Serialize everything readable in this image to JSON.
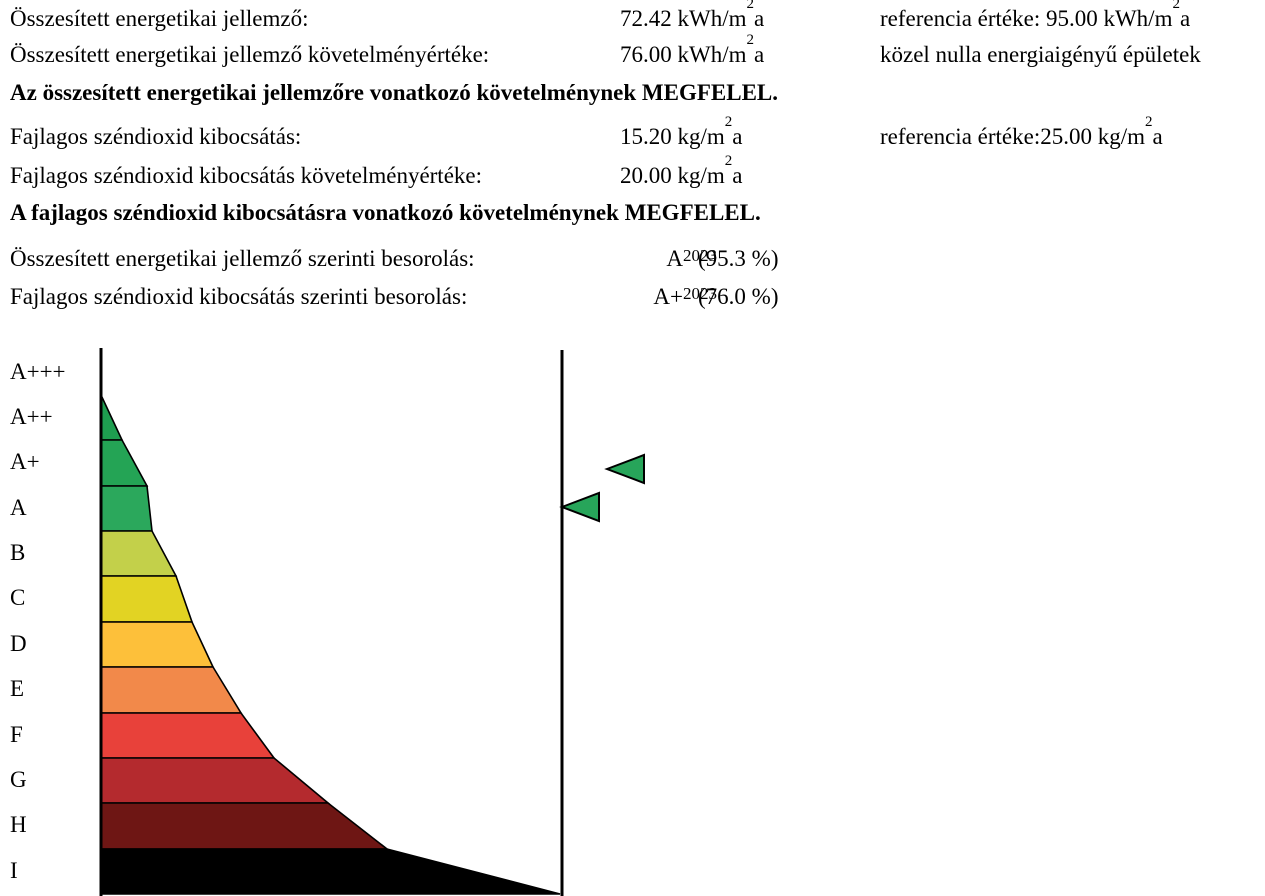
{
  "energy": {
    "label": "Összesített energetikai jellemző:",
    "value": "72.42 kWh/m",
    "value_unit_suffix": "a",
    "reference": "referencia értéke: 95.00 kWh/m",
    "reference_suffix": "a",
    "req_label": "Összesített energetikai jellemző követelményértéke:",
    "req_value": "76.00 kWh/m",
    "req_suffix": "a",
    "req_note": "közel nulla energiaigényű épületek",
    "verdict": "Az összesített energetikai jellemzőre vonatkozó követelménynek MEGFELEL."
  },
  "co2": {
    "label": "Fajlagos széndioxid kibocsátás:",
    "value": "15.20 kg/m",
    "value_suffix": "a",
    "reference": "referencia értéke:25.00 kg/m",
    "reference_suffix": "a",
    "req_label": "Fajlagos széndioxid kibocsátás követelményértéke:",
    "req_value": "20.00 kg/m",
    "req_suffix": "a",
    "verdict": "A fajlagos széndioxid kibocsátásra vonatkozó követelménynek MEGFELEL."
  },
  "superscript": "2",
  "classification": {
    "energy_label": "Összesített energetikai jellemző szerinti besorolás:",
    "energy_class": "A",
    "energy_year": "2023",
    "energy_pct": "(95.3 %)",
    "co2_label": "Fajlagos széndioxid kibocsátás szerinti besorolás:",
    "co2_class": "A+",
    "co2_year": "2023",
    "co2_pct": "(76.0 %)"
  },
  "scale": {
    "labels": [
      "A+++",
      "A++",
      "A+",
      "A",
      "B",
      "C",
      "D",
      "E",
      "F",
      "G",
      "H",
      "I"
    ],
    "colors": [
      "#ffffff",
      "#1e9e50",
      "#24a455",
      "#2ba85c",
      "#c3d04a",
      "#e2d323",
      "#fdc03a",
      "#f2894a",
      "#e8413a",
      "#b42a2e",
      "#6e1614",
      "#000000"
    ],
    "marker_color": "#27a55a",
    "energy_marker_class": "A",
    "co2_marker_class": "A+"
  }
}
